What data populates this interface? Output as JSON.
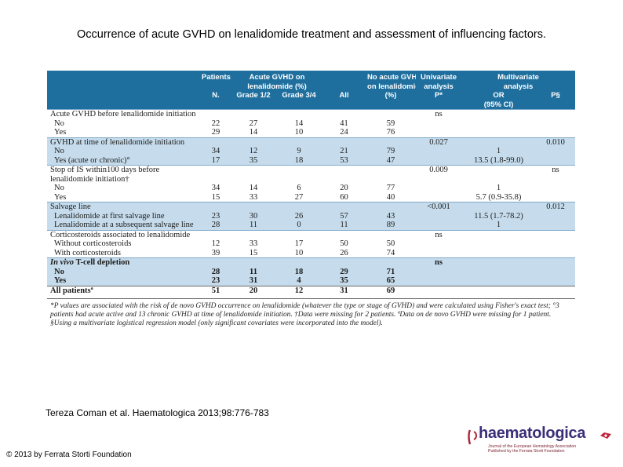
{
  "slide_title": "Occurrence of acute GVHD on lenalidomide treatment and assessment of influencing factors.",
  "header": {
    "patients": "Patients",
    "acute_gvhd_1": "Acute GVHD on",
    "acute_gvhd_2": "lenalidomide (%)",
    "no_acute_1": "No acute GVHD",
    "no_acute_2": "on lenalidomide",
    "univ_1": "Univariate",
    "univ_2": "analysis",
    "multi_1": "Multivariate",
    "multi_2": "analysis",
    "n": "N.",
    "grade12": "Grade 1/2",
    "grade34": "Grade 3/4",
    "all": "All",
    "pct": "(%)",
    "p_univ": "P*",
    "or": "OR",
    "p_multi": "P§",
    "ci": "(95% CI)"
  },
  "rows": [
    {
      "label": "Acute GVHD before lenalidomide initiation",
      "univ_p": "ns"
    },
    {
      "label": "No",
      "n": "22",
      "g12": "27",
      "g34": "14",
      "all": "41",
      "no_pct": "59"
    },
    {
      "label": "Yes",
      "n": "29",
      "g12": "14",
      "g34": "10",
      "all": "24",
      "no_pct": "76"
    },
    {
      "label": "GVHD at time of lenalidomide initiation",
      "univ_p": "0.027",
      "multi_p": "0.010"
    },
    {
      "label": "No",
      "n": "34",
      "g12": "12",
      "g34": "9",
      "all": "21",
      "no_pct": "79",
      "or": "1"
    },
    {
      "label": "Yes (acute or chronic)°",
      "n": "17",
      "g12": "35",
      "g34": "18",
      "all": "53",
      "no_pct": "47",
      "or": "13.5 (1.8-99.0)"
    },
    {
      "label": "Stop of IS within100 days before",
      "univ_p": "0.009",
      "multi_p": "ns"
    },
    {
      "label": "lenalidomide initiation†"
    },
    {
      "label": "No",
      "n": "34",
      "g12": "14",
      "g34": "6",
      "all": "20",
      "no_pct": "77",
      "or": "1"
    },
    {
      "label": "Yes",
      "n": "15",
      "g12": "33",
      "g34": "27",
      "all": "60",
      "no_pct": "40",
      "or": "5.7 (0.9-35.8)"
    },
    {
      "label": "Salvage line",
      "univ_p": "<0.001",
      "multi_p": "0.012"
    },
    {
      "label": "Lenalidomide at first salvage line",
      "n": "23",
      "g12": "30",
      "g34": "26",
      "all": "57",
      "no_pct": "43",
      "or": "11.5 (1.7-78.2)"
    },
    {
      "label": "Lenalidomide at a subsequent salvage line",
      "n": "28",
      "g12": "11",
      "g34": "0",
      "all": "11",
      "no_pct": "89",
      "or": "1"
    },
    {
      "label": "Corticosteroids associated to lenalidomide",
      "univ_p": "ns"
    },
    {
      "label": "Without corticosteroids",
      "n": "12",
      "g12": "33",
      "g34": "17",
      "all": "50",
      "no_pct": "50"
    },
    {
      "label": "With corticosteroids",
      "n": "39",
      "g12": "15",
      "g34": "10",
      "all": "26",
      "no_pct": "74"
    },
    {
      "label_italic": "In vivo",
      "label": " T-cell depletion",
      "univ_p": "ns"
    },
    {
      "label": "No",
      "n": "28",
      "g12": "11",
      "g34": "18",
      "all": "29",
      "no_pct": "71"
    },
    {
      "label": "Yes",
      "n": "23",
      "g12": "31",
      "g34": "4",
      "all": "35",
      "no_pct": "65"
    },
    {
      "label": "All patientsª",
      "n": "51",
      "g12": "20",
      "g34": "12",
      "all": "31",
      "no_pct": "69"
    }
  ],
  "footnote": "*P values are associated with the risk of de novo GVHD occurrence on lenalidomide (whatever the type or stage of GVHD) and were calculated using Fisher's exact test; °3 patients had acute active and 13 chronic GVHD at time of lenalidomide initiation. †Data were missing for 2 patients. ªData on de novo GVHD were missing for 1 patient. §Using a multivariate logistical regression model (only significant covariates were incorporated into the model).",
  "citation": "Tereza Coman et al. Haematologica 2013;98:776-783",
  "copyright": "© 2013 by Ferrata Storti Foundation",
  "logo": {
    "name": "haematologica",
    "tagline_1": "Journal of the European Hematology Association",
    "tagline_2": "Published by the Ferrata Storti Foundation"
  }
}
